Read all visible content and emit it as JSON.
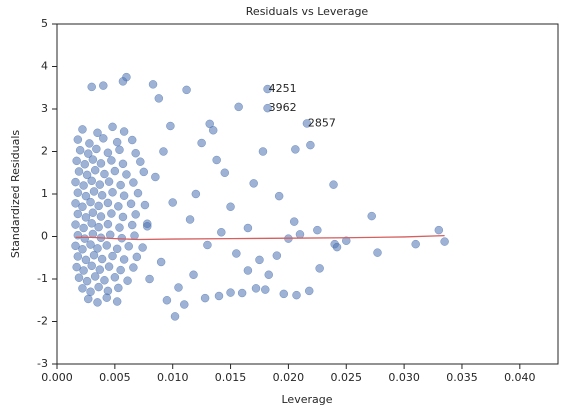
{
  "chart_data": {
    "type": "scatter",
    "title": "Residuals vs Leverage",
    "x_label": "Leverage",
    "y_label": "Standardized Residuals",
    "xlim": [
      0,
      0.0433
    ],
    "ylim": [
      -3,
      5
    ],
    "xticks": [
      {
        "value": 0,
        "label": "0.000"
      },
      {
        "value": 0.005,
        "label": "0.005"
      },
      {
        "value": 0.01,
        "label": "0.010"
      },
      {
        "value": 0.015,
        "label": "0.015"
      },
      {
        "value": 0.02,
        "label": "0.020"
      },
      {
        "value": 0.025,
        "label": "0.025"
      },
      {
        "value": 0.03,
        "label": "0.030"
      },
      {
        "value": 0.035,
        "label": "0.035"
      },
      {
        "value": 0.04,
        "label": "0.040"
      }
    ],
    "yticks": [
      -3,
      -2,
      -1,
      0,
      1,
      2,
      3,
      4,
      5
    ],
    "grid": false,
    "annotations": [
      {
        "text": "4251",
        "x": 0.0182,
        "y": 3.47
      },
      {
        "text": "3962",
        "x": 0.0182,
        "y": 3.02
      },
      {
        "text": "2857",
        "x": 0.0216,
        "y": 2.66
      }
    ],
    "series": [
      {
        "type": "scatter",
        "color": "#4c72b0",
        "x": [
          0.0182,
          0.0182,
          0.0216,
          0.0219,
          0.0206,
          0.0239,
          0.0272,
          0.033,
          0.0335,
          0.031,
          0.0277,
          0.0242,
          0.024,
          0.0227,
          0.0218,
          0.0207,
          0.0196,
          0.018,
          0.0172,
          0.016,
          0.015,
          0.014,
          0.0128,
          0.011,
          0.0102,
          0.0095,
          0.0157,
          0.0135,
          0.0132,
          0.0112,
          0.0083,
          0.006,
          0.0057,
          0.004,
          0.003,
          0.0088,
          0.0178,
          0.017,
          0.0192,
          0.0205,
          0.021,
          0.02,
          0.019,
          0.0175,
          0.0165,
          0.015,
          0.0145,
          0.0138,
          0.0125,
          0.012,
          0.0115,
          0.013,
          0.0118,
          0.0105,
          0.01,
          0.0098,
          0.0092,
          0.009,
          0.0085,
          0.008,
          0.0078,
          0.0183,
          0.0165,
          0.0155,
          0.0142,
          0.0225,
          0.025,
          0.0022,
          0.0035,
          0.0048,
          0.0058,
          0.0018,
          0.0028,
          0.004,
          0.0052,
          0.0065,
          0.002,
          0.0027,
          0.0034,
          0.0044,
          0.0054,
          0.0068,
          0.0017,
          0.0024,
          0.0031,
          0.0038,
          0.0047,
          0.0057,
          0.0072,
          0.0019,
          0.0026,
          0.0033,
          0.0041,
          0.005,
          0.006,
          0.0075,
          0.0016,
          0.0023,
          0.003,
          0.0037,
          0.0045,
          0.0055,
          0.0066,
          0.0018,
          0.0025,
          0.0032,
          0.0039,
          0.0048,
          0.0058,
          0.007,
          0.0016,
          0.0022,
          0.0029,
          0.0036,
          0.0044,
          0.0053,
          0.0064,
          0.0076,
          0.0018,
          0.0025,
          0.0031,
          0.0038,
          0.0047,
          0.0057,
          0.0068,
          0.0016,
          0.0023,
          0.003,
          0.0036,
          0.0044,
          0.0054,
          0.0065,
          0.0078,
          0.0018,
          0.0024,
          0.0031,
          0.0038,
          0.0046,
          0.0056,
          0.0067,
          0.0016,
          0.0022,
          0.0029,
          0.0035,
          0.0043,
          0.0052,
          0.0062,
          0.0074,
          0.0018,
          0.0025,
          0.0032,
          0.0039,
          0.0048,
          0.0058,
          0.0069,
          0.0017,
          0.0023,
          0.003,
          0.0037,
          0.0045,
          0.0055,
          0.0066,
          0.0019,
          0.0026,
          0.0033,
          0.0041,
          0.005,
          0.0061,
          0.0022,
          0.0029,
          0.0036,
          0.0044,
          0.0053,
          0.0027,
          0.0035,
          0.0043,
          0.0052
        ],
        "values": [
          3.47,
          3.02,
          2.66,
          2.15,
          2.05,
          1.22,
          0.48,
          0.15,
          -0.12,
          -0.18,
          -0.38,
          -0.25,
          -0.18,
          -0.75,
          -1.28,
          -1.38,
          -1.35,
          -1.25,
          -1.22,
          -1.33,
          -1.32,
          -1.4,
          -1.45,
          -1.6,
          -1.88,
          -1.5,
          3.05,
          2.5,
          2.65,
          3.45,
          3.58,
          3.75,
          3.65,
          3.55,
          3.52,
          3.25,
          2.0,
          1.25,
          0.95,
          0.35,
          0.05,
          -0.05,
          -0.45,
          -0.55,
          -0.8,
          0.7,
          1.5,
          1.8,
          2.2,
          1.0,
          0.4,
          -0.2,
          -0.9,
          -1.2,
          0.8,
          2.6,
          2.0,
          -0.6,
          1.4,
          -1.0,
          0.3,
          -0.9,
          0.2,
          -0.4,
          0.1,
          0.15,
          -0.1,
          2.52,
          2.44,
          2.58,
          2.47,
          2.28,
          2.19,
          2.31,
          2.22,
          2.27,
          2.03,
          1.95,
          2.06,
          1.97,
          2.04,
          1.96,
          1.78,
          1.7,
          1.81,
          1.72,
          1.79,
          1.71,
          1.76,
          1.53,
          1.45,
          1.56,
          1.47,
          1.54,
          1.46,
          1.52,
          1.28,
          1.2,
          1.31,
          1.22,
          1.29,
          1.21,
          1.27,
          1.03,
          0.95,
          1.06,
          0.97,
          1.04,
          0.96,
          1.02,
          0.78,
          0.7,
          0.81,
          0.72,
          0.79,
          0.71,
          0.77,
          0.74,
          0.53,
          0.45,
          0.56,
          0.47,
          0.54,
          0.46,
          0.52,
          0.28,
          0.2,
          0.31,
          0.22,
          0.29,
          0.21,
          0.27,
          0.24,
          0.03,
          -0.05,
          0.06,
          -0.03,
          0.04,
          -0.04,
          0.02,
          -0.22,
          -0.3,
          -0.19,
          -0.28,
          -0.21,
          -0.29,
          -0.23,
          -0.26,
          -0.47,
          -0.55,
          -0.44,
          -0.53,
          -0.46,
          -0.54,
          -0.48,
          -0.72,
          -0.8,
          -0.69,
          -0.78,
          -0.71,
          -0.79,
          -0.73,
          -0.97,
          -1.05,
          -0.94,
          -1.03,
          -0.96,
          -1.04,
          -1.22,
          -1.3,
          -1.19,
          -1.28,
          -1.21,
          -1.47,
          -1.55,
          -1.44,
          -1.53
        ]
      },
      {
        "type": "line",
        "color": "#d65f5f",
        "x": [
          0.0016,
          0.003,
          0.005,
          0.007,
          0.01,
          0.015,
          0.02,
          0.025,
          0.03,
          0.0335
        ],
        "values": [
          -0.02,
          -0.02,
          -0.05,
          -0.07,
          -0.06,
          -0.05,
          -0.04,
          -0.03,
          -0.01,
          0.02
        ]
      }
    ]
  }
}
